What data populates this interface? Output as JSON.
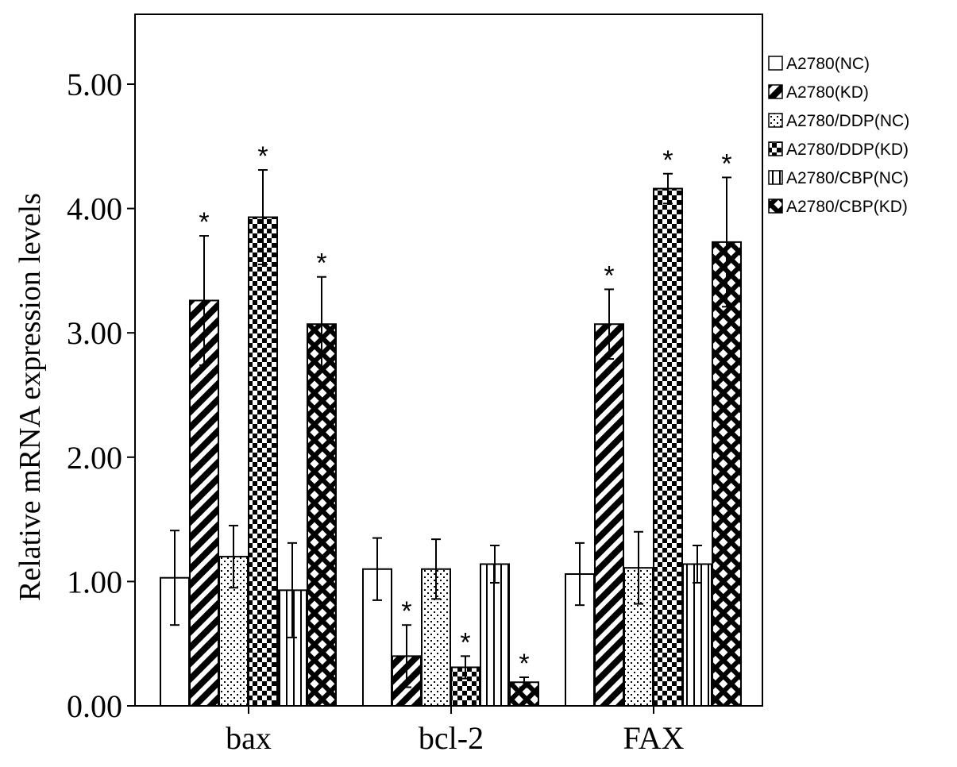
{
  "chart_data": {
    "type": "bar",
    "title": "",
    "xlabel": "",
    "ylabel": "Relative mRNA expression levels",
    "ylim": [
      0,
      5.5
    ],
    "yticks": [
      "0.00",
      "1.00",
      "2.00",
      "3.00",
      "4.00",
      "5.00"
    ],
    "ytick_values": [
      0,
      1,
      2,
      3,
      4,
      5
    ],
    "categories": [
      "bax",
      "bcl-2",
      "FAX"
    ],
    "grid": false,
    "legend_position": "right",
    "significance_marker": "*",
    "series": [
      {
        "name": "A2780(NC)",
        "pattern": "blank",
        "values": [
          1.03,
          1.1,
          1.06
        ],
        "errors": [
          0.38,
          0.25,
          0.25
        ],
        "significant": [
          false,
          false,
          false
        ]
      },
      {
        "name": "A2780(KD)",
        "pattern": "diagonal",
        "values": [
          3.26,
          0.4,
          3.07
        ],
        "errors": [
          0.52,
          0.25,
          0.28
        ],
        "significant": [
          true,
          true,
          true
        ]
      },
      {
        "name": "A2780/DDP(NC)",
        "pattern": "dots",
        "values": [
          1.2,
          1.1,
          1.11
        ],
        "errors": [
          0.25,
          0.24,
          0.29
        ],
        "significant": [
          false,
          false,
          false
        ]
      },
      {
        "name": "A2780/DDP(KD)",
        "pattern": "checker",
        "values": [
          3.93,
          0.31,
          4.16
        ],
        "errors": [
          0.38,
          0.09,
          0.12
        ],
        "significant": [
          true,
          true,
          true
        ]
      },
      {
        "name": "A2780/CBP(NC)",
        "pattern": "vertical",
        "values": [
          0.93,
          1.14,
          1.14
        ],
        "errors": [
          0.38,
          0.15,
          0.15
        ],
        "significant": [
          false,
          false,
          false
        ]
      },
      {
        "name": "A2780/CBP(KD)",
        "pattern": "crosshatch",
        "values": [
          3.07,
          0.19,
          3.73
        ],
        "errors": [
          0.38,
          0.04,
          0.52
        ],
        "significant": [
          true,
          true,
          true
        ]
      }
    ]
  }
}
